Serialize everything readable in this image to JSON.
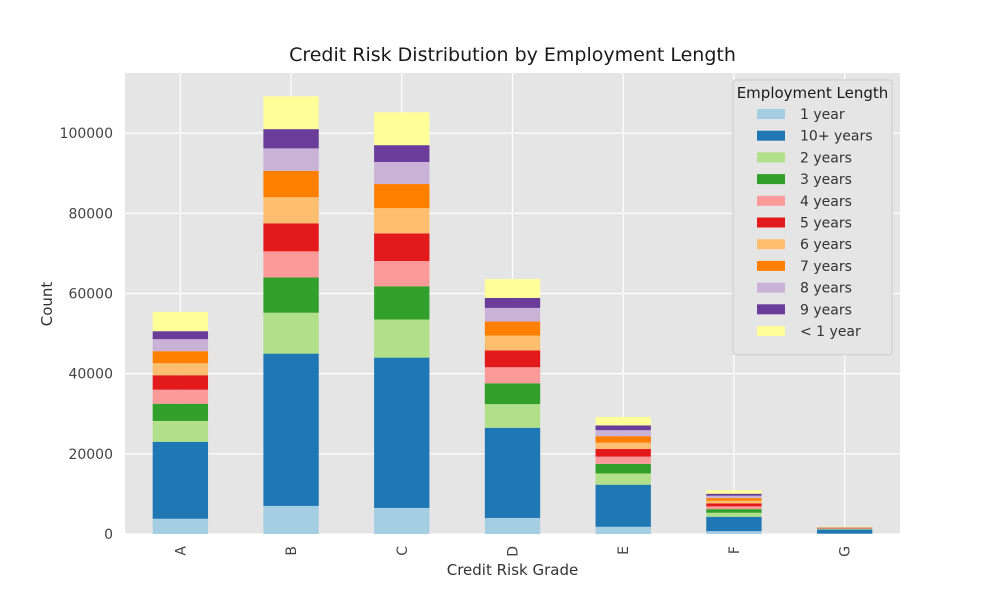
{
  "chart_data": {
    "type": "bar",
    "stacked": true,
    "title": "Credit Risk Distribution by Employment Length",
    "xlabel": "Credit Risk Grade",
    "ylabel": "Count",
    "ylim": [
      0,
      115000
    ],
    "yticks": [
      0,
      20000,
      40000,
      60000,
      80000,
      100000
    ],
    "grid": true,
    "background": "#e5e5e5",
    "legend": {
      "title": "Employment Length",
      "placement": "top-right"
    },
    "categories": [
      "A",
      "B",
      "C",
      "D",
      "E",
      "F",
      "G"
    ],
    "series": [
      {
        "name": "1 year",
        "color": "#a6cee3",
        "values": [
          3800,
          7000,
          6500,
          4000,
          1800,
          700,
          100
        ]
      },
      {
        "name": "10+ years",
        "color": "#1f78b4",
        "values": [
          19200,
          38000,
          37500,
          22500,
          10500,
          3600,
          1000
        ]
      },
      {
        "name": "2 years",
        "color": "#b2df8a",
        "values": [
          5200,
          10200,
          9500,
          5900,
          2800,
          1000,
          120
        ]
      },
      {
        "name": "3 years",
        "color": "#33a02c",
        "values": [
          4300,
          8800,
          8300,
          5200,
          2400,
          900,
          100
        ]
      },
      {
        "name": "4 years",
        "color": "#fb9a99",
        "values": [
          3500,
          6500,
          6300,
          4000,
          1800,
          700,
          80
        ]
      },
      {
        "name": "5 years",
        "color": "#e31a1c",
        "values": [
          3600,
          7000,
          6900,
          4200,
          1900,
          750,
          80
        ]
      },
      {
        "name": "6 years",
        "color": "#fdbf6f",
        "values": [
          3000,
          6500,
          6300,
          3700,
          1600,
          650,
          70
        ]
      },
      {
        "name": "7 years",
        "color": "#ff7f00",
        "values": [
          3000,
          6600,
          6000,
          3500,
          1600,
          650,
          60
        ]
      },
      {
        "name": "8 years",
        "color": "#cab2d6",
        "values": [
          3000,
          5600,
          5500,
          3400,
          1500,
          600,
          60
        ]
      },
      {
        "name": "9 years",
        "color": "#6a3d9a",
        "values": [
          2000,
          4800,
          4200,
          2500,
          1200,
          500,
          40
        ]
      },
      {
        "name": "< 1 year",
        "color": "#ffff99",
        "values": [
          4800,
          8200,
          8200,
          4700,
          2100,
          850,
          90
        ]
      }
    ]
  }
}
